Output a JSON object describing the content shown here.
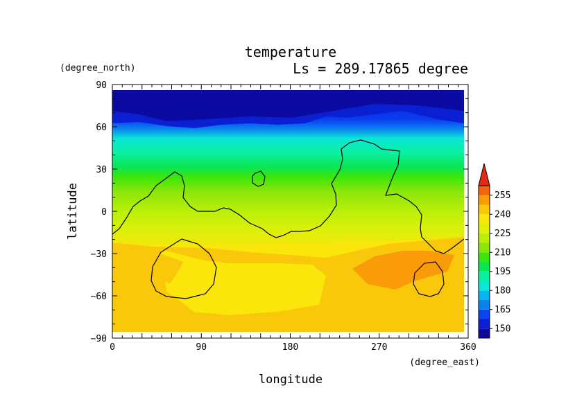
{
  "chart_data": {
    "type": "heatmap",
    "title": "temperature",
    "subtitle": "Ls = 289.17865 degree",
    "xlabel": "longitude",
    "ylabel": "latitude",
    "x_units": "(degree_east)",
    "y_units": "(degree_north)",
    "xlim": [
      0,
      360
    ],
    "ylim": [
      -90,
      90
    ],
    "x_ticks": [
      "0",
      "90",
      "180",
      "270",
      "360"
    ],
    "y_ticks": [
      "90",
      "60",
      "30",
      "0",
      "−30",
      "−60",
      "−90"
    ],
    "colorbar": {
      "levels": [
        142.5,
        150,
        157.5,
        165,
        172.5,
        180,
        187.5,
        195,
        202.5,
        210,
        217.5,
        225,
        232.5,
        240,
        247.5,
        255,
        262.5
      ],
      "tick_labels": [
        "150",
        "165",
        "180",
        "195",
        "210",
        "225",
        "240",
        "255"
      ],
      "colors": [
        "#0a0aa0",
        "#0a1ed2",
        "#0a46f0",
        "#0a82f0",
        "#0ab4f0",
        "#0ae6d7",
        "#0af0a0",
        "#0ae650",
        "#3ce60a",
        "#8ce60a",
        "#b9f00a",
        "#dcf00a",
        "#fae60a",
        "#fac80a",
        "#fa9b0a",
        "#f5640a",
        "#e62814",
        "#f06e6e"
      ],
      "extend": "max"
    },
    "contour_note": "topography contour (black line)"
  }
}
